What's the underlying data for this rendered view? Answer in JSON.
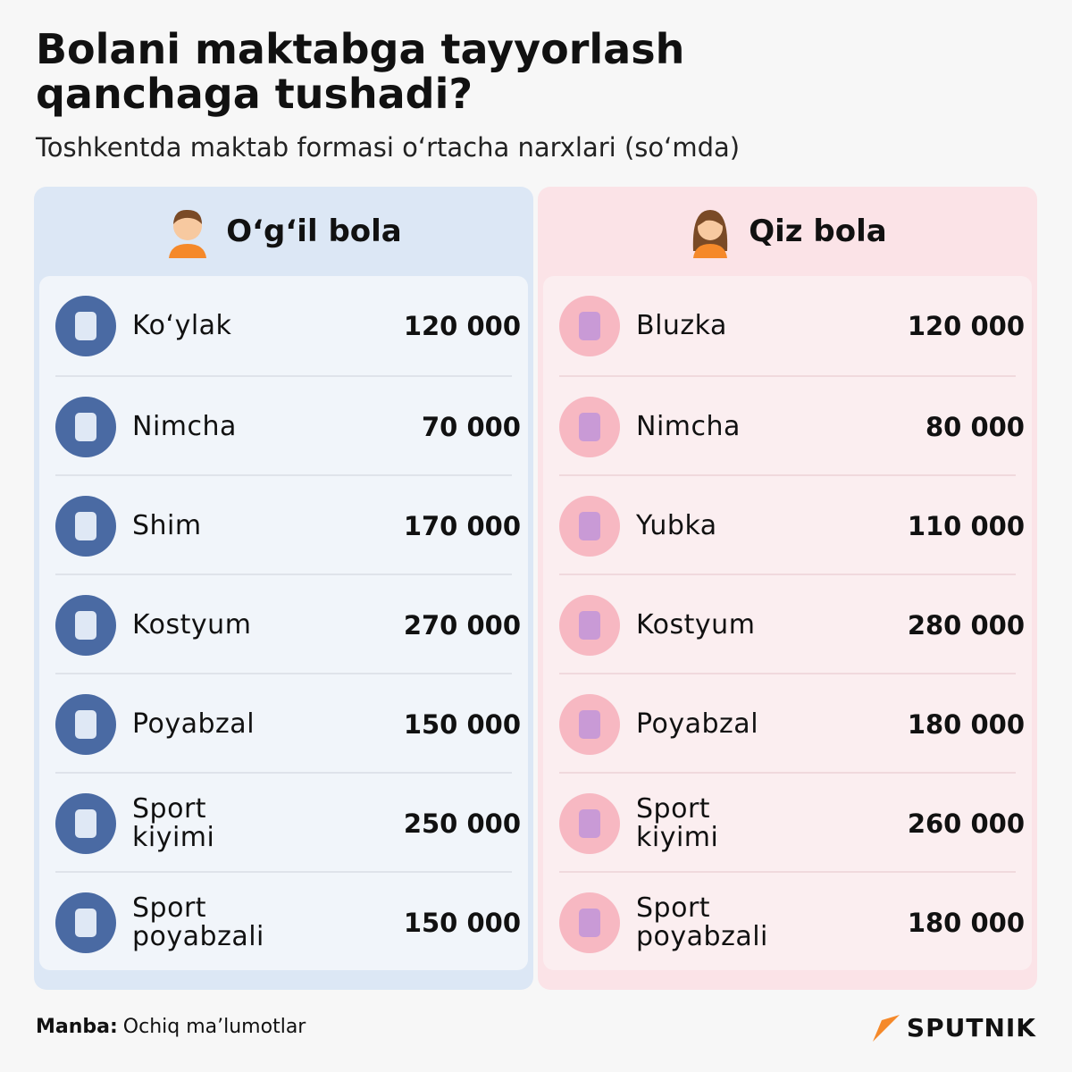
{
  "header": {
    "title": "Bolani maktabga tayyorlash qanchaga tushadi?",
    "subtitle": "Toshkentda maktab formasi o‘rtacha narxlari (so‘mda)"
  },
  "columns": [
    {
      "heading": "O‘g‘il bola",
      "items": [
        {
          "label": "Ko‘ylak",
          "price": "120 000"
        },
        {
          "label": "Nimcha",
          "price": "70 000"
        },
        {
          "label": "Shim",
          "price": "170 000"
        },
        {
          "label": "Kostyum",
          "price": "270 000"
        },
        {
          "label": "Poyabzal",
          "price": "150 000"
        },
        {
          "label": "Sport kiyimi",
          "price": "250 000"
        },
        {
          "label": "Sport poyabzali",
          "price": "150 000"
        }
      ]
    },
    {
      "heading": "Qiz bola",
      "items": [
        {
          "label": "Bluzka",
          "price": "120 000"
        },
        {
          "label": "Nimcha",
          "price": "80 000"
        },
        {
          "label": "Yubka",
          "price": "110 000"
        },
        {
          "label": "Kostyum",
          "price": "280 000"
        },
        {
          "label": "Poyabzal",
          "price": "180 000"
        },
        {
          "label": "Sport kiyimi",
          "price": "260 000"
        },
        {
          "label": "Sport poyabzali",
          "price": "180 000"
        }
      ]
    }
  ],
  "footer": {
    "source_label": "Manba:",
    "source": "Ochiq ma’lumotlar",
    "logo": "SPUTNIK"
  }
}
